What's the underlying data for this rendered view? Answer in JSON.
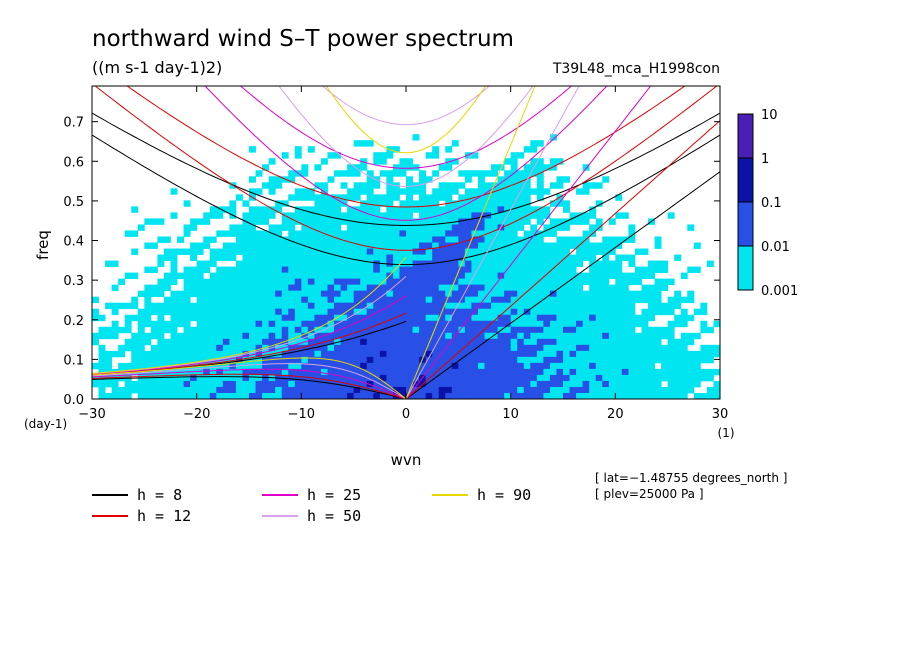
{
  "chart_data": {
    "type": "heatmap",
    "title": "northward wind S–T power spectrum",
    "units": "((m s-1 day-1)2)",
    "run_name": "T39L48_mca_H1998con",
    "xlabel": "wvn",
    "ylabel": "freq",
    "x_unit": "(1)",
    "y_unit": "(day-1)",
    "xlim": [
      -30,
      30
    ],
    "ylim": [
      0,
      0.79
    ],
    "xticks": [
      -30,
      -20,
      -10,
      0,
      10,
      20,
      30
    ],
    "xtick_labels": [
      "−30",
      "−20",
      "−10",
      "0",
      "10",
      "20",
      "30"
    ],
    "yticks": [
      0.0,
      0.1,
      0.2,
      0.3,
      0.4,
      0.5,
      0.6,
      0.7
    ],
    "ytick_labels": [
      "0.0",
      "0.1",
      "0.2",
      "0.3",
      "0.4",
      "0.5",
      "0.6",
      "0.7"
    ],
    "colorbar": {
      "levels": [
        "10",
        "1",
        "0.1",
        "0.01",
        "0.001"
      ],
      "colors": [
        "#4a1fb5",
        "#0a12a8",
        "#2850e6",
        "#00e5f0"
      ]
    },
    "background_color": "#ffffff",
    "dispersion_curves": [
      {
        "name": "h =  8",
        "color": "#000000",
        "h": 8
      },
      {
        "name": "h = 12",
        "color": "#e00000",
        "h": 12
      },
      {
        "name": "h = 25",
        "color": "#e000c8",
        "h": 25
      },
      {
        "name": "h = 50",
        "color": "#d8a0e8",
        "h": 50
      },
      {
        "name": "h = 90",
        "color": "#e8d800",
        "h": 90
      }
    ],
    "annotations": [
      "[ lat=−1.48755 degrees_north ]",
      "[ plev=25000 Pa ]"
    ]
  }
}
